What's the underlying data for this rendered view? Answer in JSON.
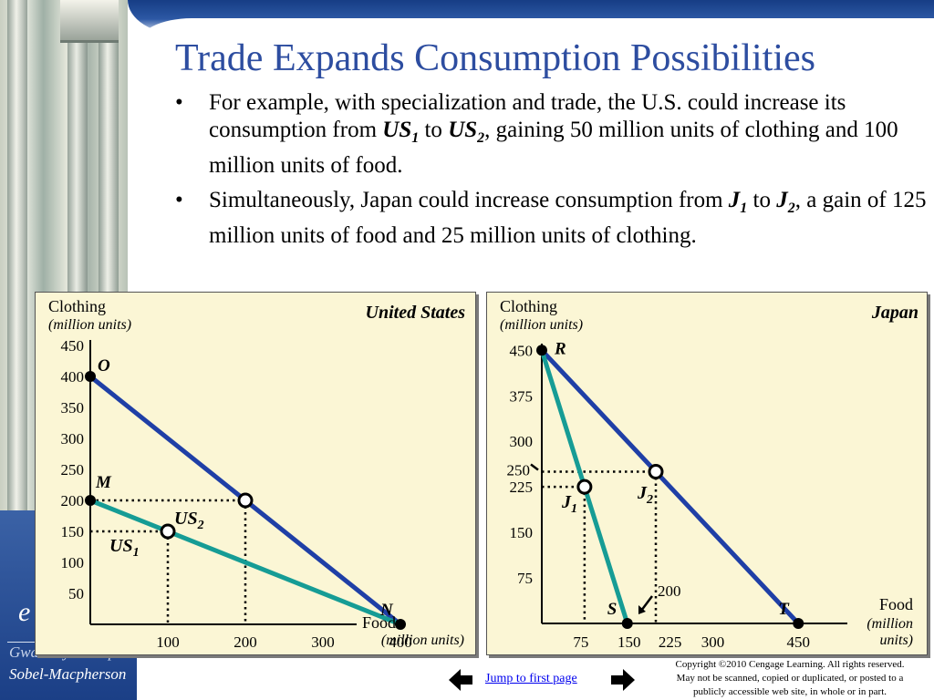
{
  "slide": {
    "title": "Trade Expands Consumption Possibilities",
    "bullets": [
      {
        "marker": "•",
        "parts": [
          {
            "text": "For example, with specialization and trade, the U.S. could increase its consumption from ",
            "style": "normal"
          },
          {
            "text": "US",
            "style": "bi",
            "sub": "1"
          },
          {
            "text": " to ",
            "style": "normal"
          },
          {
            "text": "US",
            "style": "bi",
            "sub": "2"
          },
          {
            "text": ", gaining 50 million units of clothing and 100 million units of food.",
            "style": "normal"
          }
        ]
      },
      {
        "marker": "•",
        "parts": [
          {
            "text": "Simultaneously, Japan could increase consumption from ",
            "style": "normal"
          },
          {
            "text": "J",
            "style": "bi",
            "sub": "1"
          },
          {
            "text": " to ",
            "style": "normal"
          },
          {
            "text": "J",
            "style": "bi",
            "sub": "2"
          },
          {
            "text": ", a gain of 125 million units of food and 25 million units of clothing.",
            "style": "normal"
          }
        ]
      }
    ]
  },
  "branding": {
    "letter": "e",
    "line1": "Gwartney-Stroup",
    "line2": "Sobel-Macpherson"
  },
  "colors": {
    "title": "#2d4da0",
    "frontier_before": "#1f3fa6",
    "frontier_after": "#169c95",
    "panel_bg": "#fbf6d5"
  },
  "us_chart": {
    "country": "United States",
    "ylabel": "Clothing",
    "ylabel_units": "(million units)",
    "xlabel": "Food",
    "xlabel_units": "(million units)",
    "yticks": [
      450,
      400,
      350,
      300,
      250,
      200,
      150,
      100,
      50
    ],
    "xticks": [
      100,
      200,
      300,
      400
    ],
    "lines": [
      {
        "name": "trade-line",
        "color": "#1f3fa6",
        "from": [
          0,
          400
        ],
        "to": [
          400,
          0
        ]
      },
      {
        "name": "production-possibilities",
        "color": "#169c95",
        "from": [
          0,
          200
        ],
        "to": [
          400,
          0
        ]
      }
    ],
    "points": [
      {
        "label": "O",
        "x": 0,
        "y": 400,
        "type": "filled"
      },
      {
        "label": "M",
        "x": 0,
        "y": 200,
        "type": "filled"
      },
      {
        "label": "N",
        "x": 400,
        "y": 0,
        "type": "filled"
      },
      {
        "label": "US",
        "sub": "1",
        "x": 100,
        "y": 150,
        "type": "open"
      },
      {
        "label": "US",
        "sub": "2",
        "x": 200,
        "y": 200,
        "type": "open"
      }
    ]
  },
  "japan_chart": {
    "country": "Japan",
    "ylabel": "Clothing",
    "ylabel_units": "(million units)",
    "xlabel": "Food",
    "xlabel_units_1": "(million",
    "xlabel_units_2": "units)",
    "yticks": [
      450,
      375,
      300,
      250,
      225,
      150,
      75
    ],
    "xticks": [
      75,
      150,
      225,
      300,
      450
    ],
    "annotation_200": "200",
    "lines": [
      {
        "name": "trade-line",
        "color": "#1f3fa6",
        "from": [
          0,
          450
        ],
        "to": [
          450,
          0
        ]
      },
      {
        "name": "production-possibilities",
        "color": "#169c95",
        "from": [
          0,
          450
        ],
        "to": [
          150,
          0
        ]
      }
    ],
    "points": [
      {
        "label": "R",
        "x": 0,
        "y": 450,
        "type": "filled"
      },
      {
        "label": "S",
        "x": 150,
        "y": 0,
        "type": "filled"
      },
      {
        "label": "T",
        "x": 450,
        "y": 0,
        "type": "filled"
      },
      {
        "label": "J",
        "sub": "1",
        "x": 75,
        "y": 225,
        "type": "open"
      },
      {
        "label": "J",
        "sub": "2",
        "x": 200,
        "y": 250,
        "type": "open"
      }
    ]
  },
  "footer": {
    "jump_link": "Jump to first page",
    "copyright_1": "Copyright ©2010 Cengage Learning. All rights reserved.",
    "copyright_2": "May not be scanned, copied or duplicated, or posted to a",
    "copyright_3": "publicly accessible web site, in whole or in part."
  }
}
